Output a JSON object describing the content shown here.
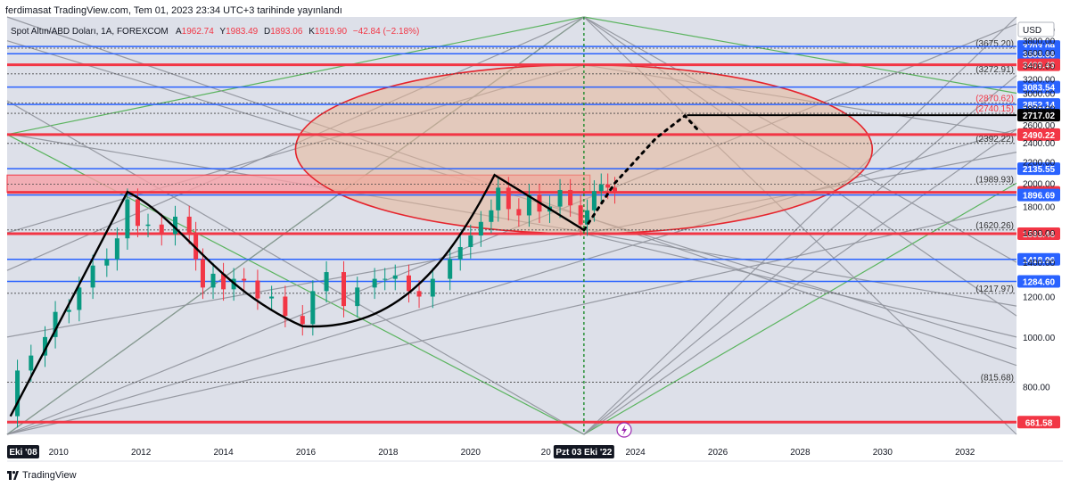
{
  "header": {
    "publisher": "ferdimasat TradingView.com, Tem 01, 2023 23:34 UTC+3 tarihinde yayınlandı"
  },
  "footer": {
    "brand": "TradingView"
  },
  "chart_data": {
    "type": "candlestick",
    "title": "Spot Altın/ABD Doları, 1A, FOREXCOM",
    "ohlc": {
      "open_label": "A",
      "open": "1962.74",
      "high_label": "Y",
      "high": "1983.49",
      "low_label": "D",
      "low": "1893.06",
      "close_label": "K",
      "close": "1919.90",
      "change": "−42.84 (−2.18%)"
    },
    "currency": "USD",
    "xlim": [
      2008.75,
      2033.25
    ],
    "ylim": [
      645,
      4230
    ],
    "x_ticks": [
      2010,
      2012,
      2014,
      2016,
      2018,
      2020,
      2024,
      2026,
      2028,
      2030,
      2032
    ],
    "x_tick_labels": [
      "2010",
      "2012",
      "2014",
      "2016",
      "2018",
      "2020",
      "2024",
      "2026",
      "2028",
      "2030",
      "2032"
    ],
    "x_partial_label": "20",
    "x_markers": [
      {
        "x": 2008.83,
        "label": "Eki '08"
      },
      {
        "x": 2022.75,
        "label": "Pzt 03 Eki '22"
      }
    ],
    "y_ticks": [
      800,
      1000,
      1200,
      1400,
      1600,
      1800,
      2000,
      2200,
      2400,
      2600,
      2800,
      3000,
      3200,
      3400,
      3600,
      3800,
      4000,
      4200
    ],
    "y_tick_labels": [
      "800.00",
      "1000.00",
      "1200.00",
      "1400.00",
      "1600.00",
      "1800.00",
      "2000.00",
      "2200.00",
      "2400.00",
      "2600.00",
      "2800.00",
      "3000.00",
      "3200.00",
      "3400.00",
      "3600.00",
      "3800.00",
      "4000.00",
      "4200.00"
    ],
    "price_levels": [
      {
        "value": 3703.09,
        "label": "3703.09",
        "kind": "blue"
      },
      {
        "value": 3583.66,
        "label": "3583.66",
        "kind": "blue"
      },
      {
        "value": 3409.43,
        "label": "3409.43",
        "kind": "red"
      },
      {
        "value": 3083.54,
        "label": "3083.54",
        "kind": "blue"
      },
      {
        "value": 2852.14,
        "label": "2852.14",
        "kind": "blue"
      },
      {
        "value": 2717.02,
        "label": "2717.02",
        "kind": "black"
      },
      {
        "value": 2490.22,
        "label": "2490.22",
        "kind": "red"
      },
      {
        "value": 2135.55,
        "label": "2135.55",
        "kind": "blue"
      },
      {
        "value": 1919.9,
        "label": "1919.90",
        "kind": "red"
      },
      {
        "value": 1896.69,
        "label": "1896.69",
        "kind": "blue"
      },
      {
        "value": 1593.46,
        "label": "1593.46",
        "kind": "red"
      },
      {
        "value": 1418.96,
        "label": "1418.96",
        "kind": "blue"
      },
      {
        "value": 1284.6,
        "label": "1284.60",
        "kind": "blue"
      },
      {
        "value": 681.58,
        "label": "681.58",
        "kind": "red"
      }
    ],
    "dotted_levels": [
      {
        "value": 3675.2,
        "label": "(3675.20)"
      },
      {
        "value": 3272.91,
        "label": "(3272.91)"
      },
      {
        "value": 2870.62,
        "label": "(2870.62)"
      },
      {
        "value": 2740.15,
        "label": "(2740.15)"
      },
      {
        "value": 2392.22,
        "label": "(2392.22)"
      },
      {
        "value": 1989.93,
        "label": "(1989.93)"
      },
      {
        "value": 1620.26,
        "label": "(1620.26)"
      },
      {
        "value": 1217.97,
        "label": "(1217.97)"
      },
      {
        "value": 815.68,
        "label": "(815.68)"
      }
    ],
    "ellipse": {
      "center_x": 2022.75,
      "center_y": 2490.22,
      "left_x": 2015.75,
      "right_x": 2029.75,
      "top_y": 3409.43,
      "bottom_y": 1593.46
    },
    "resistance_zone": [
      1919.9,
      2075
    ],
    "swing_path": [
      [
        2008.83,
        700
      ],
      [
        2011.67,
        1923
      ],
      [
        2014.0,
        1410
      ],
      [
        2015.92,
        1050
      ],
      [
        2017.5,
        1110
      ],
      [
        2019.0,
        1300
      ],
      [
        2020.58,
        2075
      ],
      [
        2022.75,
        1620
      ]
    ],
    "projection_path": [
      [
        2022.75,
        1620
      ],
      [
        2023.5,
        2000
      ],
      [
        2024.5,
        2450
      ],
      [
        2025.2,
        2710
      ],
      [
        2025.5,
        2550
      ]
    ],
    "target_line": {
      "x_from": 2025.25,
      "value": 2717.02
    },
    "price_series": [
      [
        2008.83,
        700
      ],
      [
        2009.0,
        860
      ],
      [
        2009.33,
        920
      ],
      [
        2009.67,
        1000
      ],
      [
        2009.92,
        1120
      ],
      [
        2010.25,
        1130
      ],
      [
        2010.5,
        1250
      ],
      [
        2010.83,
        1380
      ],
      [
        2011.17,
        1420
      ],
      [
        2011.42,
        1560
      ],
      [
        2011.67,
        1860
      ],
      [
        2011.92,
        1650
      ],
      [
        2012.17,
        1660
      ],
      [
        2012.5,
        1590
      ],
      [
        2012.83,
        1720
      ],
      [
        2013.17,
        1600
      ],
      [
        2013.33,
        1420
      ],
      [
        2013.5,
        1250
      ],
      [
        2013.75,
        1330
      ],
      [
        2014.0,
        1240
      ],
      [
        2014.25,
        1300
      ],
      [
        2014.5,
        1290
      ],
      [
        2014.83,
        1190
      ],
      [
        2015.17,
        1200
      ],
      [
        2015.5,
        1100
      ],
      [
        2015.92,
        1060
      ],
      [
        2016.17,
        1230
      ],
      [
        2016.5,
        1340
      ],
      [
        2016.92,
        1150
      ],
      [
        2017.25,
        1250
      ],
      [
        2017.67,
        1300
      ],
      [
        2017.92,
        1300
      ],
      [
        2018.17,
        1320
      ],
      [
        2018.5,
        1230
      ],
      [
        2018.75,
        1200
      ],
      [
        2019.08,
        1300
      ],
      [
        2019.5,
        1420
      ],
      [
        2019.75,
        1500
      ],
      [
        2020.0,
        1580
      ],
      [
        2020.25,
        1680
      ],
      [
        2020.5,
        1770
      ],
      [
        2020.67,
        1960
      ],
      [
        2020.92,
        1780
      ],
      [
        2021.17,
        1730
      ],
      [
        2021.42,
        1900
      ],
      [
        2021.67,
        1760
      ],
      [
        2021.92,
        1800
      ],
      [
        2022.17,
        1940
      ],
      [
        2022.42,
        1810
      ],
      [
        2022.67,
        1660
      ],
      [
        2022.83,
        1770
      ],
      [
        2023.0,
        1930
      ],
      [
        2023.17,
        1990
      ],
      [
        2023.33,
        1960
      ],
      [
        2023.5,
        1920
      ]
    ]
  }
}
